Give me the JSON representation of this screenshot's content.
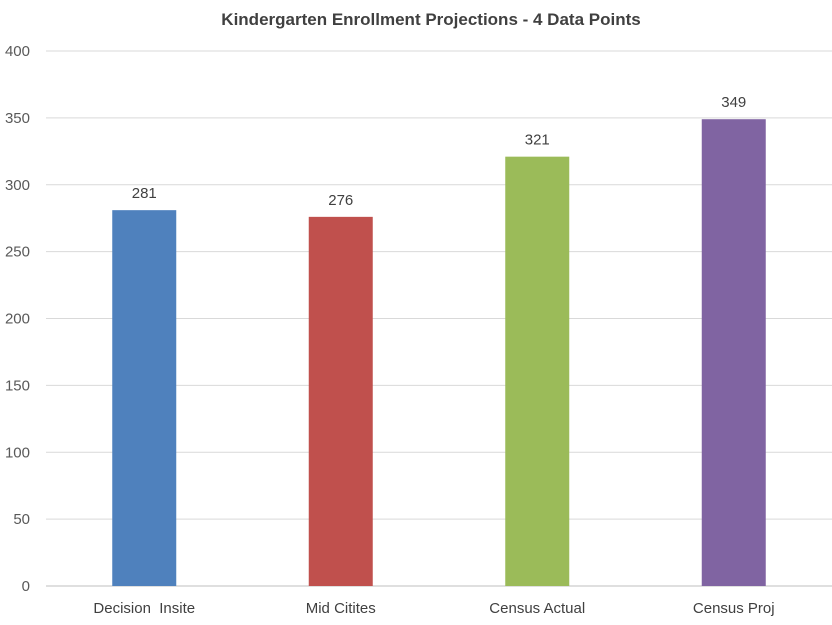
{
  "chart_data": {
    "type": "bar",
    "title": "Kindergarten Enrollment Projections - 4 Data Points",
    "categories": [
      "Decision  Insite",
      "Mid Citites",
      "Census Actual",
      "Census Proj"
    ],
    "values": [
      281,
      276,
      321,
      349
    ],
    "data_labels": [
      "281",
      "276",
      "321",
      "349"
    ],
    "colors": [
      "#4f81bd",
      "#c0504d",
      "#9bbb59",
      "#8064a2"
    ],
    "ylim": [
      0,
      400
    ],
    "yticks": [
      0,
      50,
      100,
      150,
      200,
      250,
      300,
      350,
      400
    ],
    "ytick_labels": [
      "0",
      "50",
      "100",
      "150",
      "200",
      "250",
      "300",
      "350",
      "400"
    ],
    "grid": true,
    "legend": false
  }
}
